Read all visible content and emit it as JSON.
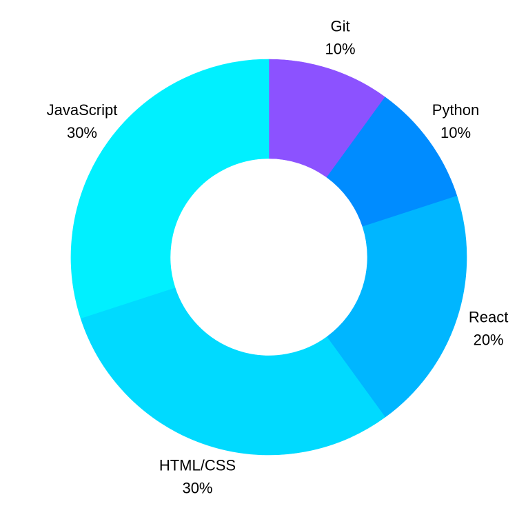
{
  "chart_data": {
    "type": "pie",
    "variant": "donut",
    "title": "",
    "slices": [
      {
        "label": "Git",
        "value": 10,
        "display": "10%",
        "color": "#8C52FF"
      },
      {
        "label": "Python",
        "value": 10,
        "display": "10%",
        "color": "#008CFF"
      },
      {
        "label": "React",
        "value": 20,
        "display": "20%",
        "color": "#00B6FF"
      },
      {
        "label": "HTML/CSS",
        "value": 30,
        "display": "30%",
        "color": "#00DAFF"
      },
      {
        "label": "JavaScript",
        "value": 30,
        "display": "30%",
        "color": "#00F0FF"
      }
    ],
    "start_angle": "12 o'clock",
    "direction": "clockwise",
    "legend": "none",
    "labels": "outside"
  }
}
